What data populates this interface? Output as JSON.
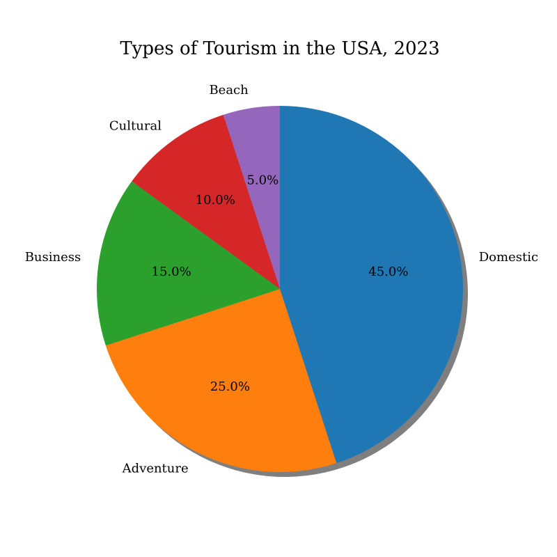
{
  "chart_data": {
    "type": "pie",
    "title": "Types of Tourism in the USA, 2023",
    "categories": [
      "Domestic",
      "Adventure",
      "Business",
      "Cultural",
      "Beach"
    ],
    "values": [
      45.0,
      25.0,
      15.0,
      10.0,
      5.0
    ],
    "percent_labels": [
      "45.0%",
      "25.0%",
      "15.0%",
      "10.0%",
      "5.0%"
    ],
    "colors": [
      "#1f77b4",
      "#ff7f0e",
      "#2ca02c",
      "#d62728",
      "#9467bd"
    ],
    "start_angle_deg": 90,
    "direction": "clockwise",
    "shadow": true,
    "legend": "none"
  }
}
